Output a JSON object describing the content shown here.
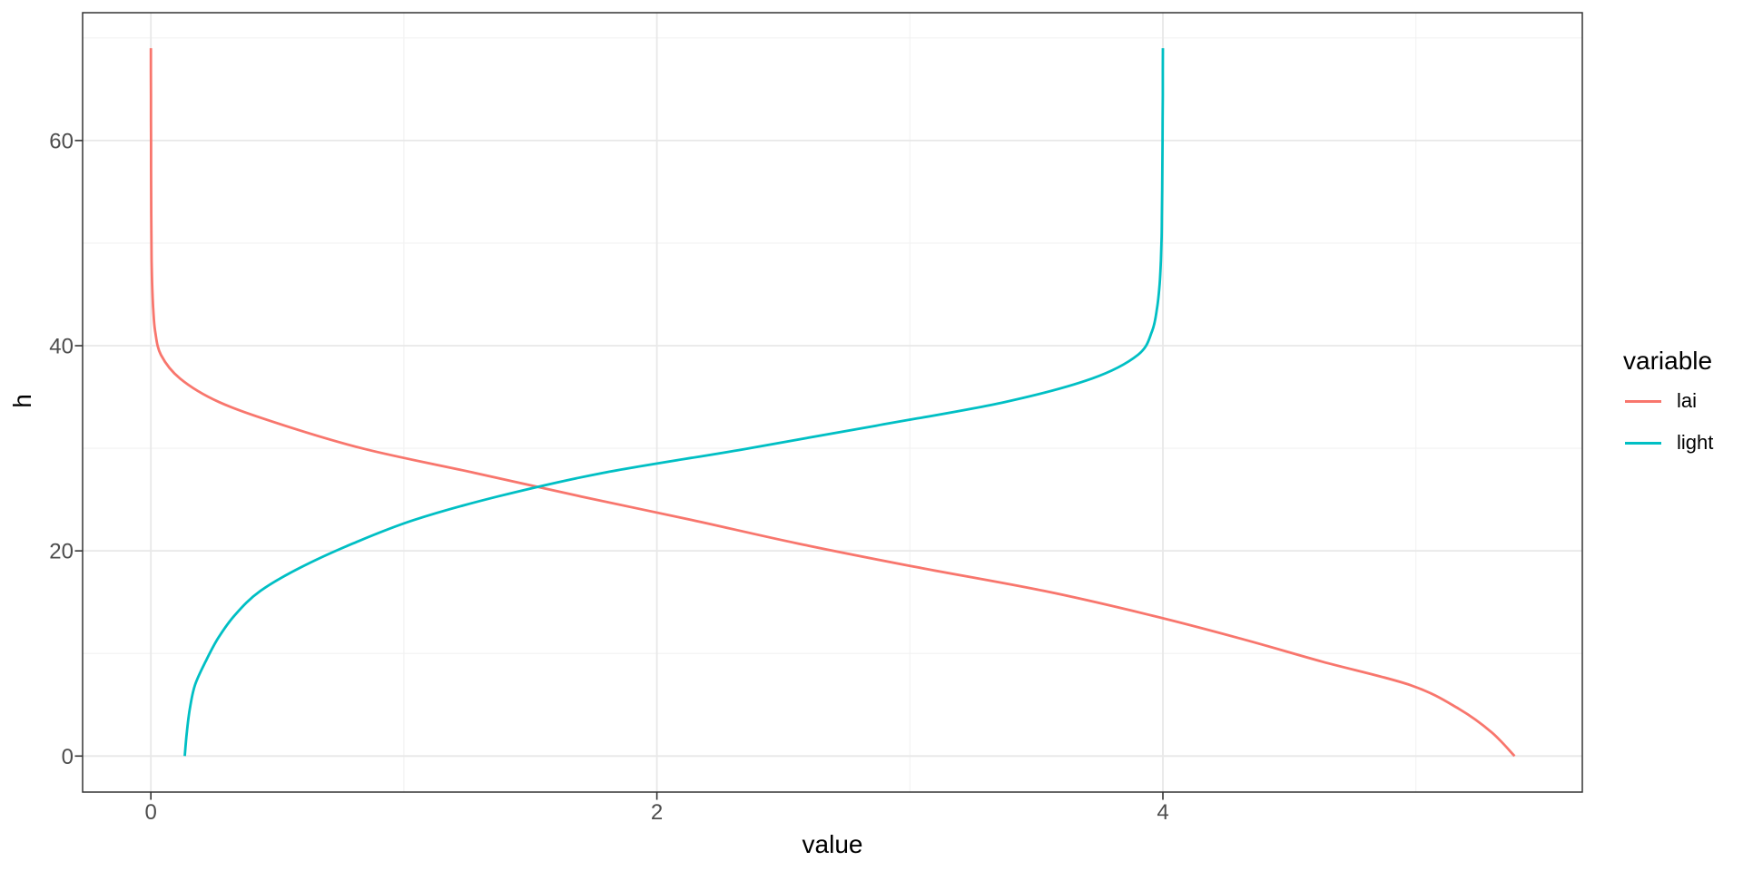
{
  "chart_data": {
    "type": "line",
    "title": "",
    "x_axis": {
      "label": "value",
      "ticks": [
        "0",
        "2",
        "4"
      ],
      "tick_values": [
        0,
        2,
        4
      ],
      "minor_values": [
        1,
        3,
        5
      ],
      "range": [
        -0.27,
        5.66
      ]
    },
    "y_axis": {
      "label": "h",
      "ticks": [
        "0",
        "20",
        "40",
        "60"
      ],
      "tick_values": [
        0,
        20,
        40,
        60
      ],
      "minor_values": [
        10,
        30,
        50,
        70
      ],
      "range": [
        -3.5,
        72.4
      ]
    },
    "legend": {
      "title": "variable",
      "position": "right",
      "entries": [
        {
          "label": "lai",
          "color": "#F8766D"
        },
        {
          "label": "light",
          "color": "#00BFC4"
        }
      ]
    },
    "series": [
      {
        "name": "lai",
        "color": "#F8766D",
        "points": [
          [
            0,
            69
          ],
          [
            0.0001,
            66.7
          ],
          [
            0.0002,
            64.4
          ],
          [
            0.0004,
            62.1
          ],
          [
            0.0006,
            59.8
          ],
          [
            0.0008,
            57.5
          ],
          [
            0.001,
            55.2
          ],
          [
            0.0015,
            52.9
          ],
          [
            0.002,
            50.6
          ],
          [
            0.003,
            48.3
          ],
          [
            0.005,
            46
          ],
          [
            0.009,
            43.7
          ],
          [
            0.017,
            41.4
          ],
          [
            0.04,
            39.1
          ],
          [
            0.115,
            36.8
          ],
          [
            0.27,
            34.5
          ],
          [
            0.53,
            32.2
          ],
          [
            0.85,
            29.9
          ],
          [
            1.28,
            27.6
          ],
          [
            1.7,
            25.3
          ],
          [
            2.14,
            23
          ],
          [
            2.56,
            20.7
          ],
          [
            3.03,
            18.4
          ],
          [
            3.53,
            16.1
          ],
          [
            3.94,
            13.8
          ],
          [
            4.3,
            11.5
          ],
          [
            4.63,
            9.2
          ],
          [
            4.98,
            6.9
          ],
          [
            5.17,
            4.6
          ],
          [
            5.3,
            2.3
          ],
          [
            5.39,
            0
          ]
        ]
      },
      {
        "name": "light",
        "color": "#00BFC4",
        "points": [
          [
            4,
            69
          ],
          [
            3.9997,
            66.7
          ],
          [
            3.9995,
            64.4
          ],
          [
            3.999,
            62.1
          ],
          [
            3.9985,
            59.8
          ],
          [
            3.998,
            57.5
          ],
          [
            3.997,
            55.2
          ],
          [
            3.996,
            52.9
          ],
          [
            3.995,
            50.6
          ],
          [
            3.992,
            48.3
          ],
          [
            3.987,
            46
          ],
          [
            3.977,
            43.7
          ],
          [
            3.957,
            41.4
          ],
          [
            3.901,
            39.1
          ],
          [
            3.72,
            36.8
          ],
          [
            3.374,
            34.5
          ],
          [
            2.866,
            32.2
          ],
          [
            2.342,
            29.9
          ],
          [
            1.787,
            27.6
          ],
          [
            1.371,
            25.3
          ],
          [
            1.039,
            23
          ],
          [
            0.797,
            20.7
          ],
          [
            0.593,
            18.4
          ],
          [
            0.433,
            16.1
          ],
          [
            0.334,
            13.8
          ],
          [
            0.266,
            11.5
          ],
          [
            0.216,
            9.2
          ],
          [
            0.174,
            6.9
          ],
          [
            0.154,
            4.6
          ],
          [
            0.142,
            2.3
          ],
          [
            0.134,
            0
          ]
        ]
      }
    ],
    "grid": true,
    "background": "#FFFFFF",
    "styles": {
      "grid_major": "#E8E8E8",
      "grid_minor": "#F2F2F2",
      "panel_border": "#333333",
      "tick_color": "#333333",
      "tick_label_color": "#4D4D4D",
      "axis_title_color": "#000000"
    }
  }
}
